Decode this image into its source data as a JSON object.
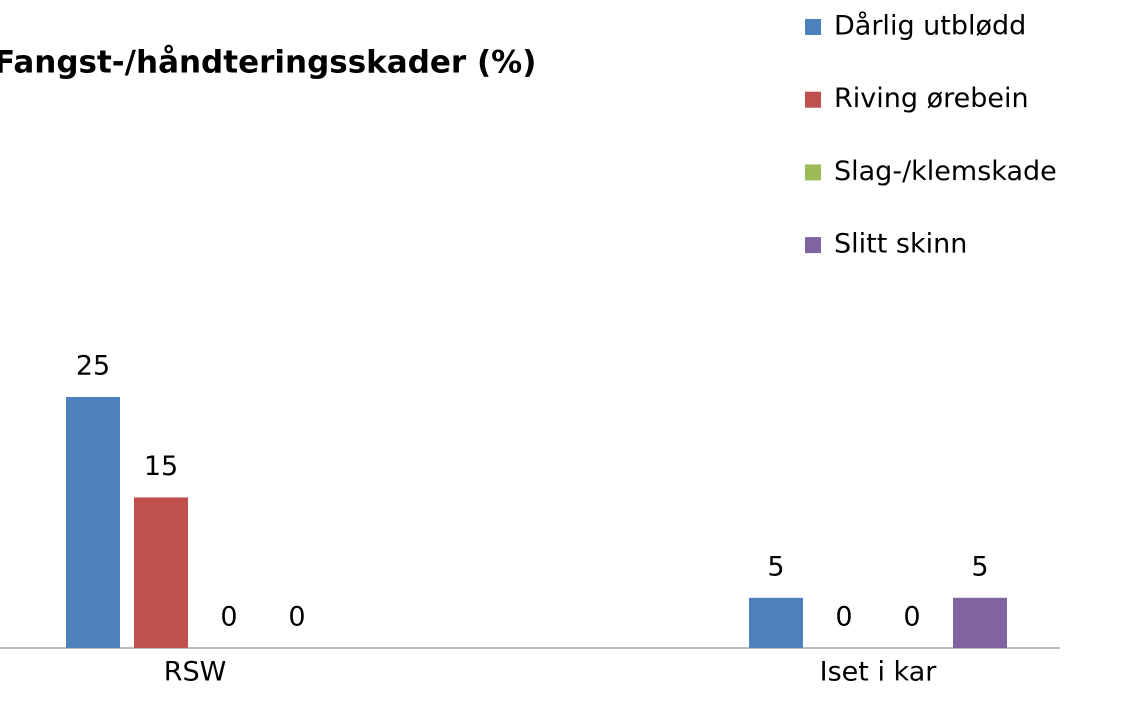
{
  "chart_data": {
    "type": "bar",
    "title": "Fangst-/håndteringsskader (%)",
    "categories": [
      "RSW",
      "Iset i kar"
    ],
    "series": [
      {
        "name": "Dårlig utblødd",
        "color": "#4f81bd",
        "values": [
          25,
          5
        ]
      },
      {
        "name": "Riving ørebein",
        "color": "#c0504d",
        "values": [
          15,
          0
        ]
      },
      {
        "name": "Slag-/klemskade",
        "color": "#9bbb59",
        "values": [
          0,
          0
        ]
      },
      {
        "name": "Slitt skinn",
        "color": "#8064a2",
        "values": [
          0,
          5
        ]
      }
    ],
    "legend": "top-right"
  }
}
